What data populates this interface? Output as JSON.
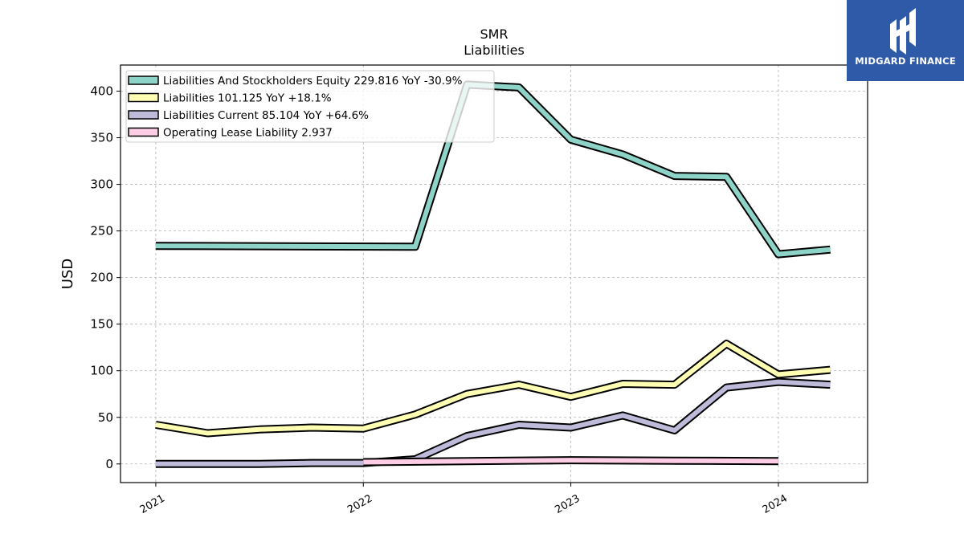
{
  "chart_data": {
    "type": "line",
    "title": "SMR",
    "subtitle": "Liabilities",
    "xlabel": "",
    "ylabel": "USD",
    "ylim": [
      -20,
      428
    ],
    "xlim": [
      2020.83,
      2024.43
    ],
    "yticks": [
      0,
      50,
      100,
      150,
      200,
      250,
      300,
      350,
      400
    ],
    "xticks": [
      {
        "value": 2021,
        "label": "2021"
      },
      {
        "value": 2022,
        "label": "2022"
      },
      {
        "value": 2023,
        "label": "2023"
      },
      {
        "value": 2024,
        "label": "2024"
      }
    ],
    "grid": true,
    "legend_position": "top-left",
    "series": [
      {
        "name": "Liabilities And Stockholders Equity  229.816 YoY -30.9%",
        "color": "#8dd3c7",
        "x": [
          2021.0,
          2022.25,
          2022.5,
          2022.75,
          2023.0,
          2023.25,
          2023.5,
          2023.75,
          2024.0,
          2024.25
        ],
        "y": [
          234,
          233,
          407,
          404,
          348,
          332,
          309,
          308,
          225,
          230
        ]
      },
      {
        "name": "Liabilities  101.125 YoY +18.1%",
        "color": "#ffffb3",
        "x": [
          2021.0,
          2021.25,
          2021.5,
          2021.75,
          2022.0,
          2022.25,
          2022.5,
          2022.75,
          2023.0,
          2023.25,
          2023.5,
          2023.75,
          2024.0,
          2024.25
        ],
        "y": [
          42,
          33,
          37,
          39,
          38,
          53,
          75,
          85,
          72,
          86,
          85,
          129,
          96,
          101
        ]
      },
      {
        "name": "Liabilities Current  85.104 YoY +64.6%",
        "color": "#bebada",
        "x": [
          2021.0,
          2021.25,
          2021.5,
          2021.75,
          2022.0,
          2022.25,
          2022.5,
          2022.75,
          2023.0,
          2023.25,
          2023.5,
          2023.75,
          2024.0,
          2024.25
        ],
        "y": [
          0,
          0,
          0,
          1,
          1,
          5,
          30,
          42,
          39,
          52,
          36,
          82,
          88,
          85
        ]
      },
      {
        "name": "Operating Lease Liability  2.937",
        "color": "#fccde5",
        "x": [
          2022.0,
          2022.5,
          2023.0,
          2023.5,
          2024.0
        ],
        "y": [
          2,
          3,
          4,
          3.5,
          3
        ]
      }
    ]
  },
  "logo": {
    "text": "MIDGARD FINANCE"
  }
}
